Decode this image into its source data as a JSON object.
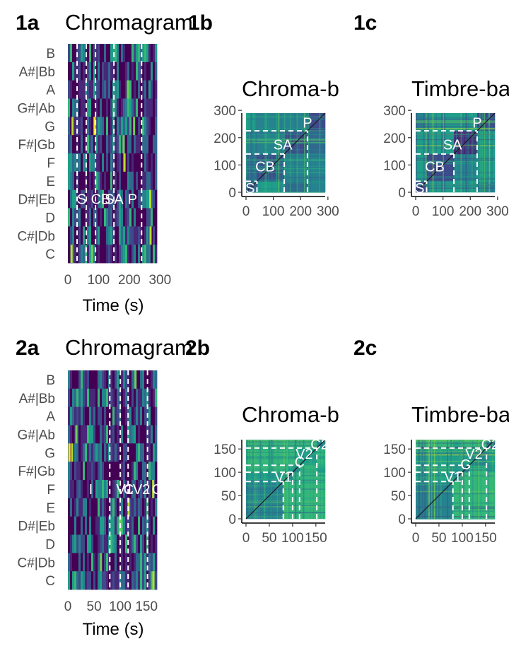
{
  "panel_labels": [
    "1a",
    "1b",
    "1c",
    "2a",
    "2b",
    "2c"
  ],
  "colors": {
    "viridis": [
      "#440154",
      "#482878",
      "#3e4a89",
      "#31688e",
      "#26828e",
      "#1f9e89",
      "#35b779",
      "#6dcd59",
      "#b4de2c",
      "#fde725"
    ],
    "boundary_line": "#ffffff",
    "diagonal": "#1a1a1a"
  },
  "chart_data": [
    {
      "id": "1a",
      "type": "heatmap",
      "title": "Chromagram",
      "xlabel": "Time (s)",
      "ylabel": "",
      "pitch_classes": [
        "C",
        "C#|Db",
        "D",
        "D#|Eb",
        "E",
        "F",
        "F#|Gb",
        "G",
        "G#|Ab",
        "A",
        "A#|Bb",
        "B"
      ],
      "x_ticks": [
        0,
        100,
        200,
        300
      ],
      "xlim": [
        0,
        290
      ],
      "section_boundaries": [
        30,
        60,
        90,
        150,
        240
      ],
      "annotations": [
        {
          "label": "S",
          "x": 30,
          "y": "D#|Eb"
        },
        {
          "label": "CB",
          "x": 75,
          "y": "D#|Eb"
        },
        {
          "label": "SA",
          "x": 120,
          "y": "D#|Eb"
        },
        {
          "label": "P",
          "x": 195,
          "y": "D#|Eb"
        }
      ]
    },
    {
      "id": "1b",
      "type": "heatmap",
      "title": "Chroma-based SSM",
      "xlabel": "",
      "ylabel": "",
      "x_ticks": [
        0,
        100,
        200,
        300
      ],
      "y_ticks": [
        0,
        100,
        200,
        300
      ],
      "lim": [
        0,
        290
      ],
      "section_boundaries": [
        40,
        140,
        225
      ],
      "annotations": [
        {
          "label": "S",
          "x": 15,
          "y": 15
        },
        {
          "label": "CB",
          "x": 70,
          "y": 95
        },
        {
          "label": "SA",
          "x": 135,
          "y": 175
        },
        {
          "label": "P",
          "x": 225,
          "y": 255
        }
      ]
    },
    {
      "id": "1c",
      "type": "heatmap",
      "title": "Timbre-based SSM",
      "xlabel": "",
      "ylabel": "",
      "x_ticks": [
        0,
        100,
        200,
        300
      ],
      "y_ticks": [
        0,
        100,
        200,
        300
      ],
      "lim": [
        0,
        290
      ],
      "section_boundaries": [
        40,
        140,
        225
      ],
      "annotations": [
        {
          "label": "S",
          "x": 15,
          "y": 15
        },
        {
          "label": "CB",
          "x": 70,
          "y": 95
        },
        {
          "label": "SA",
          "x": 135,
          "y": 175
        },
        {
          "label": "P",
          "x": 225,
          "y": 255
        }
      ]
    },
    {
      "id": "2a",
      "type": "heatmap",
      "title": "Chromagram",
      "xlabel": "Time (s)",
      "ylabel": "",
      "pitch_classes": [
        "C",
        "C#|Db",
        "D",
        "D#|Eb",
        "E",
        "F",
        "F#|Gb",
        "G",
        "G#|Ab",
        "A",
        "A#|Bb",
        "B"
      ],
      "x_ticks": [
        0,
        50,
        100,
        150
      ],
      "xlim": [
        0,
        170
      ],
      "section_boundaries": [
        80,
        100,
        115,
        152
      ],
      "annotations": [
        {
          "label": "I",
          "x": 40,
          "y": "F"
        },
        {
          "label": "V1",
          "x": 92,
          "y": "F"
        },
        {
          "label": "C",
          "x": 106,
          "y": "F"
        },
        {
          "label": "V2",
          "x": 124,
          "y": "F"
        },
        {
          "label": "C2",
          "x": 160,
          "y": "F"
        }
      ]
    },
    {
      "id": "2b",
      "type": "heatmap",
      "title": "Chroma-based SSM",
      "xlabel": "",
      "ylabel": "",
      "x_ticks": [
        0,
        50,
        100,
        150
      ],
      "y_ticks": [
        0,
        50,
        100,
        150
      ],
      "lim": [
        0,
        170
      ],
      "section_boundaries": [
        80,
        100,
        115,
        152
      ],
      "annotations": [
        {
          "label": "V1",
          "x": 80,
          "y": 90
        },
        {
          "label": "C",
          "x": 115,
          "y": 122
        },
        {
          "label": "V2",
          "x": 125,
          "y": 140
        },
        {
          "label": "C2",
          "x": 158,
          "y": 160
        }
      ]
    },
    {
      "id": "2c",
      "type": "heatmap",
      "title": "Timbre-based SSM",
      "xlabel": "",
      "ylabel": "",
      "x_ticks": [
        0,
        50,
        100,
        150
      ],
      "y_ticks": [
        0,
        50,
        100,
        150
      ],
      "lim": [
        0,
        170
      ],
      "section_boundaries": [
        80,
        100,
        115,
        152
      ],
      "annotations": [
        {
          "label": "V1",
          "x": 80,
          "y": 90
        },
        {
          "label": "C",
          "x": 107,
          "y": 117
        },
        {
          "label": "V2",
          "x": 125,
          "y": 140
        },
        {
          "label": "C2",
          "x": 160,
          "y": 160
        }
      ]
    }
  ]
}
